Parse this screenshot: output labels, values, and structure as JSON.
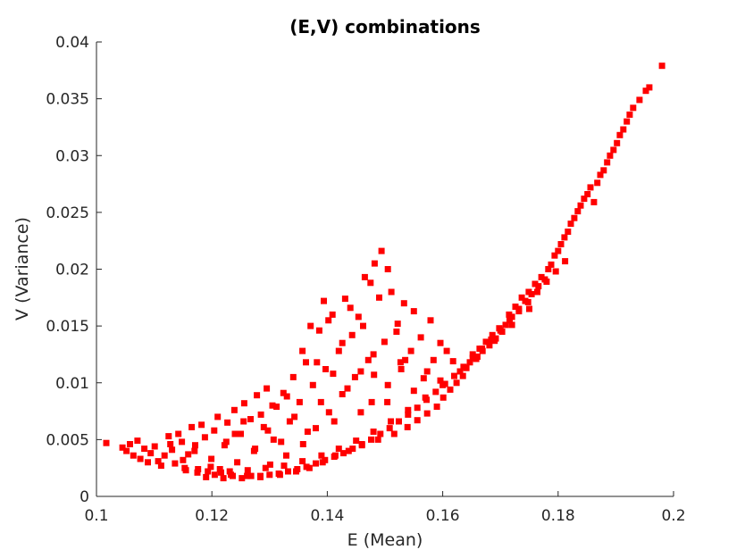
{
  "chart_data": {
    "type": "scatter",
    "title": "(E,V) combinations",
    "xlabel": "E (Mean)",
    "ylabel": "V (Variance)",
    "xlim": [
      0.1,
      0.2
    ],
    "ylim": [
      0,
      0.04
    ],
    "xticks": [
      0.1,
      0.12,
      0.14,
      0.16,
      0.18,
      0.2
    ],
    "xtick_labels": [
      "0.1",
      "0.12",
      "0.14",
      "0.16",
      "0.18",
      "0.2"
    ],
    "yticks": [
      0,
      0.005,
      0.01,
      0.015,
      0.02,
      0.025,
      0.03,
      0.035,
      0.04
    ],
    "ytick_labels": [
      "0",
      "0.005",
      "0.01",
      "0.015",
      "0.02",
      "0.025",
      "0.03",
      "0.035",
      "0.04"
    ],
    "grid": false,
    "marker_color": "#ff0000",
    "marker": "square",
    "series": [
      {
        "values": [
          [
            0.1017,
            0.0047
          ],
          [
            0.1045,
            0.0043
          ],
          [
            0.1052,
            0.004
          ],
          [
            0.1058,
            0.0046
          ],
          [
            0.1064,
            0.0036
          ],
          [
            0.1071,
            0.0049
          ],
          [
            0.1076,
            0.0033
          ],
          [
            0.1083,
            0.0042
          ],
          [
            0.1089,
            0.003
          ],
          [
            0.1094,
            0.0038
          ],
          [
            0.1101,
            0.0044
          ],
          [
            0.1107,
            0.0031
          ],
          [
            0.1112,
            0.0027
          ],
          [
            0.1118,
            0.0036
          ],
          [
            0.1125,
            0.0053
          ],
          [
            0.1131,
            0.0041
          ],
          [
            0.1136,
            0.0029
          ],
          [
            0.1142,
            0.0055
          ],
          [
            0.1148,
            0.0048
          ],
          [
            0.1153,
            0.0025
          ],
          [
            0.1159,
            0.0037
          ],
          [
            0.1165,
            0.0061
          ],
          [
            0.1171,
            0.0045
          ],
          [
            0.1176,
            0.0024
          ],
          [
            0.1182,
            0.0063
          ],
          [
            0.1188,
            0.0052
          ],
          [
            0.1193,
            0.0022
          ],
          [
            0.1199,
            0.0033
          ],
          [
            0.1204,
            0.0058
          ],
          [
            0.121,
            0.007
          ],
          [
            0.1216,
            0.0021
          ],
          [
            0.1222,
            0.0045
          ],
          [
            0.1227,
            0.0065
          ],
          [
            0.1233,
            0.0019
          ],
          [
            0.1239,
            0.0076
          ],
          [
            0.1244,
            0.003
          ],
          [
            0.125,
            0.0055
          ],
          [
            0.1256,
            0.0082
          ],
          [
            0.1261,
            0.0018
          ],
          [
            0.1267,
            0.0068
          ],
          [
            0.1273,
            0.004
          ],
          [
            0.1278,
            0.0089
          ],
          [
            0.1284,
            0.0018
          ],
          [
            0.129,
            0.0061
          ],
          [
            0.1295,
            0.0095
          ],
          [
            0.1301,
            0.0028
          ],
          [
            0.1307,
            0.005
          ],
          [
            0.1312,
            0.0079
          ],
          [
            0.1318,
            0.0019
          ],
          [
            0.1324,
            0.0091
          ],
          [
            0.1329,
            0.0036
          ],
          [
            0.1335,
            0.0066
          ],
          [
            0.1341,
            0.0105
          ],
          [
            0.1346,
            0.0022
          ],
          [
            0.1352,
            0.0083
          ],
          [
            0.1358,
            0.0046
          ],
          [
            0.1363,
            0.0118
          ],
          [
            0.1369,
            0.0025
          ],
          [
            0.1375,
            0.0098
          ],
          [
            0.138,
            0.006
          ],
          [
            0.1386,
            0.0146
          ],
          [
            0.1392,
            0.003
          ],
          [
            0.1397,
            0.0112
          ],
          [
            0.1403,
            0.0074
          ],
          [
            0.1409,
            0.016
          ],
          [
            0.1414,
            0.0036
          ],
          [
            0.142,
            0.0128
          ],
          [
            0.1426,
            0.009
          ],
          [
            0.1431,
            0.0174
          ],
          [
            0.1437,
            0.004
          ],
          [
            0.1443,
            0.0142
          ],
          [
            0.1448,
            0.0105
          ],
          [
            0.1454,
            0.0158
          ],
          [
            0.146,
            0.0045
          ],
          [
            0.1465,
            0.0193
          ],
          [
            0.1471,
            0.012
          ],
          [
            0.1477,
            0.0083
          ],
          [
            0.1482,
            0.0205
          ],
          [
            0.1488,
            0.005
          ],
          [
            0.1494,
            0.0216
          ],
          [
            0.1499,
            0.0136
          ],
          [
            0.1505,
            0.0098
          ],
          [
            0.1511,
            0.018
          ],
          [
            0.1516,
            0.0055
          ],
          [
            0.1522,
            0.0152
          ],
          [
            0.1528,
            0.0112
          ],
          [
            0.1533,
            0.017
          ],
          [
            0.1539,
            0.0061
          ],
          [
            0.1545,
            0.0128
          ],
          [
            0.155,
            0.0163
          ],
          [
            0.1556,
            0.0067
          ],
          [
            0.1562,
            0.014
          ],
          [
            0.1567,
            0.0104
          ],
          [
            0.1573,
            0.0073
          ],
          [
            0.1579,
            0.0155
          ],
          [
            0.1584,
            0.012
          ],
          [
            0.159,
            0.0079
          ],
          [
            0.1596,
            0.0135
          ],
          [
            0.1601,
            0.0087
          ],
          [
            0.1607,
            0.0128
          ],
          [
            0.1613,
            0.0094
          ],
          [
            0.1618,
            0.0119
          ],
          [
            0.1624,
            0.01
          ],
          [
            0.163,
            0.011
          ],
          [
            0.1635,
            0.0106
          ],
          [
            0.1641,
            0.0113
          ],
          [
            0.1647,
            0.0118
          ],
          [
            0.1652,
            0.0125
          ],
          [
            0.1658,
            0.0121
          ],
          [
            0.1664,
            0.013
          ],
          [
            0.1669,
            0.0128
          ],
          [
            0.1675,
            0.0136
          ],
          [
            0.1681,
            0.0133
          ],
          [
            0.1686,
            0.0142
          ],
          [
            0.1692,
            0.0139
          ],
          [
            0.1698,
            0.0148
          ],
          [
            0.1703,
            0.0145
          ],
          [
            0.1709,
            0.0151
          ],
          [
            0.1715,
            0.016
          ],
          [
            0.172,
            0.0158
          ],
          [
            0.1726,
            0.0167
          ],
          [
            0.1732,
            0.0165
          ],
          [
            0.1737,
            0.0175
          ],
          [
            0.1743,
            0.0172
          ],
          [
            0.1749,
            0.018
          ],
          [
            0.1754,
            0.0178
          ],
          [
            0.176,
            0.0187
          ],
          [
            0.1766,
            0.0185
          ],
          [
            0.1771,
            0.0193
          ],
          [
            0.1777,
            0.0191
          ],
          [
            0.1783,
            0.02
          ],
          [
            0.1788,
            0.0204
          ],
          [
            0.1794,
            0.0212
          ],
          [
            0.18,
            0.0216
          ],
          [
            0.1805,
            0.0222
          ],
          [
            0.1811,
            0.0228
          ],
          [
            0.1817,
            0.0233
          ],
          [
            0.1822,
            0.024
          ],
          [
            0.1828,
            0.0245
          ],
          [
            0.1834,
            0.0251
          ],
          [
            0.1839,
            0.0256
          ],
          [
            0.1845,
            0.0262
          ],
          [
            0.1851,
            0.0266
          ],
          [
            0.1856,
            0.0272
          ],
          [
            0.1862,
            0.0259
          ],
          [
            0.1868,
            0.0276
          ],
          [
            0.1873,
            0.0283
          ],
          [
            0.1879,
            0.0287
          ],
          [
            0.1885,
            0.0294
          ],
          [
            0.189,
            0.03
          ],
          [
            0.1896,
            0.0305
          ],
          [
            0.1902,
            0.0311
          ],
          [
            0.1907,
            0.0318
          ],
          [
            0.1913,
            0.0323
          ],
          [
            0.1919,
            0.033
          ],
          [
            0.1924,
            0.0336
          ],
          [
            0.193,
            0.0342
          ],
          [
            0.1941,
            0.0349
          ],
          [
            0.1952,
            0.0357
          ],
          [
            0.1958,
            0.036
          ],
          [
            0.198,
            0.0379
          ],
          [
            0.119,
            0.0017
          ],
          [
            0.1205,
            0.0019
          ],
          [
            0.122,
            0.0016
          ],
          [
            0.1236,
            0.0018
          ],
          [
            0.1252,
            0.0016
          ],
          [
            0.1268,
            0.0018
          ],
          [
            0.1284,
            0.0017
          ],
          [
            0.13,
            0.0019
          ],
          [
            0.1316,
            0.002
          ],
          [
            0.1332,
            0.0022
          ],
          [
            0.1348,
            0.0024
          ],
          [
            0.1364,
            0.0026
          ],
          [
            0.138,
            0.0029
          ],
          [
            0.1396,
            0.0032
          ],
          [
            0.1412,
            0.0035
          ],
          [
            0.1428,
            0.0038
          ],
          [
            0.1444,
            0.0042
          ],
          [
            0.146,
            0.0046
          ],
          [
            0.1476,
            0.005
          ],
          [
            0.1492,
            0.0055
          ],
          [
            0.1508,
            0.006
          ],
          [
            0.1524,
            0.0066
          ],
          [
            0.154,
            0.0072
          ],
          [
            0.1556,
            0.0078
          ],
          [
            0.1572,
            0.0085
          ],
          [
            0.1588,
            0.0092
          ],
          [
            0.1604,
            0.0099
          ],
          [
            0.162,
            0.0106
          ],
          [
            0.1636,
            0.0114
          ],
          [
            0.1652,
            0.0122
          ],
          [
            0.1668,
            0.013
          ],
          [
            0.1684,
            0.0138
          ],
          [
            0.17,
            0.0146
          ],
          [
            0.1716,
            0.0155
          ],
          [
            0.1732,
            0.0163
          ],
          [
            0.1748,
            0.0171
          ],
          [
            0.1764,
            0.018
          ],
          [
            0.178,
            0.0189
          ],
          [
            0.1796,
            0.0198
          ],
          [
            0.1812,
            0.0207
          ],
          [
            0.1155,
            0.0023
          ],
          [
            0.1175,
            0.0021
          ],
          [
            0.1198,
            0.0026
          ],
          [
            0.1214,
            0.0024
          ],
          [
            0.1231,
            0.0022
          ],
          [
            0.1262,
            0.0023
          ],
          [
            0.1293,
            0.0025
          ],
          [
            0.1325,
            0.0027
          ],
          [
            0.1357,
            0.0031
          ],
          [
            0.139,
            0.0036
          ],
          [
            0.142,
            0.0042
          ],
          [
            0.145,
            0.0049
          ],
          [
            0.148,
            0.0057
          ],
          [
            0.151,
            0.0066
          ],
          [
            0.154,
            0.0076
          ],
          [
            0.157,
            0.0087
          ],
          [
            0.16,
            0.0098
          ],
          [
            0.163,
            0.011
          ],
          [
            0.166,
            0.0123
          ],
          [
            0.169,
            0.0137
          ],
          [
            0.172,
            0.0151
          ],
          [
            0.175,
            0.0165
          ],
          [
            0.1275,
            0.0042
          ],
          [
            0.1297,
            0.0058
          ],
          [
            0.132,
            0.0048
          ],
          [
            0.1343,
            0.007
          ],
          [
            0.1366,
            0.0057
          ],
          [
            0.1389,
            0.0083
          ],
          [
            0.1412,
            0.0066
          ],
          [
            0.1435,
            0.0095
          ],
          [
            0.1458,
            0.0074
          ],
          [
            0.1481,
            0.0107
          ],
          [
            0.1504,
            0.0083
          ],
          [
            0.1527,
            0.0118
          ],
          [
            0.155,
            0.0093
          ],
          [
            0.1573,
            0.011
          ],
          [
            0.1596,
            0.0102
          ],
          [
            0.1357,
            0.0128
          ],
          [
            0.1371,
            0.015
          ],
          [
            0.1394,
            0.0172
          ],
          [
            0.1402,
            0.0155
          ],
          [
            0.1426,
            0.0135
          ],
          [
            0.144,
            0.0166
          ],
          [
            0.1462,
            0.015
          ],
          [
            0.1475,
            0.0188
          ],
          [
            0.149,
            0.0175
          ],
          [
            0.1505,
            0.02
          ],
          [
            0.152,
            0.0145
          ],
          [
            0.1535,
            0.012
          ],
          [
            0.148,
            0.0125
          ],
          [
            0.1458,
            0.011
          ],
          [
            0.141,
            0.0108
          ],
          [
            0.1382,
            0.0118
          ],
          [
            0.133,
            0.0088
          ],
          [
            0.1305,
            0.008
          ],
          [
            0.1285,
            0.0072
          ],
          [
            0.1255,
            0.0066
          ],
          [
            0.124,
            0.0055
          ],
          [
            0.1225,
            0.0048
          ],
          [
            0.117,
            0.004
          ],
          [
            0.115,
            0.0032
          ],
          [
            0.1128,
            0.0046
          ]
        ]
      }
    ]
  }
}
